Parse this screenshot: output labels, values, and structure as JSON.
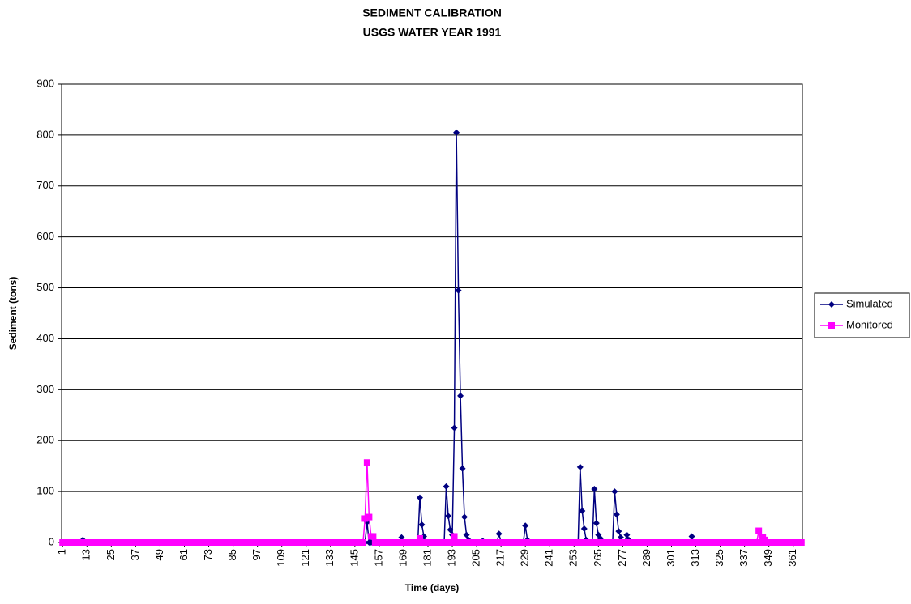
{
  "chart_data": {
    "type": "line",
    "title": "SEDIMENT CALIBRATION",
    "subtitle": "USGS WATER YEAR 1991",
    "xlabel": "Time (days)",
    "ylabel": "Sediment (tons)",
    "xlim": [
      0.5,
      365.5
    ],
    "ylim": [
      0,
      900
    ],
    "xticks": [
      1,
      13,
      25,
      37,
      49,
      61,
      73,
      85,
      97,
      109,
      121,
      133,
      145,
      157,
      169,
      181,
      193,
      205,
      217,
      229,
      241,
      253,
      265,
      277,
      289,
      301,
      313,
      325,
      337,
      349,
      361
    ],
    "yticks": [
      0,
      100,
      200,
      300,
      400,
      500,
      600,
      700,
      800,
      900
    ],
    "grid": true,
    "legend": "right",
    "x": [
      1,
      2,
      3,
      4,
      5,
      6,
      7,
      8,
      9,
      10,
      11,
      12,
      13,
      14,
      15,
      16,
      17,
      18,
      19,
      20,
      21,
      22,
      23,
      24,
      25,
      26,
      27,
      28,
      29,
      30,
      31,
      32,
      33,
      34,
      35,
      36,
      37,
      38,
      39,
      40,
      41,
      42,
      43,
      44,
      45,
      46,
      47,
      48,
      49,
      50,
      51,
      52,
      53,
      54,
      55,
      56,
      57,
      58,
      59,
      60,
      61,
      62,
      63,
      64,
      65,
      66,
      67,
      68,
      69,
      70,
      71,
      72,
      73,
      74,
      75,
      76,
      77,
      78,
      79,
      80,
      81,
      82,
      83,
      84,
      85,
      86,
      87,
      88,
      89,
      90,
      91,
      92,
      93,
      94,
      95,
      96,
      97,
      98,
      99,
      100,
      101,
      102,
      103,
      104,
      105,
      106,
      107,
      108,
      109,
      110,
      111,
      112,
      113,
      114,
      115,
      116,
      117,
      118,
      119,
      120,
      121,
      122,
      123,
      124,
      125,
      126,
      127,
      128,
      129,
      130,
      131,
      132,
      133,
      134,
      135,
      136,
      137,
      138,
      139,
      140,
      141,
      142,
      143,
      144,
      145,
      146,
      147,
      148,
      149,
      150,
      151,
      152,
      153,
      154,
      155,
      156,
      157,
      158,
      159,
      160,
      161,
      162,
      163,
      164,
      165,
      166,
      167,
      168,
      169,
      170,
      171,
      172,
      173,
      174,
      175,
      176,
      177,
      178,
      179,
      180,
      181,
      182,
      183,
      184,
      185,
      186,
      187,
      188,
      189,
      190,
      191,
      192,
      193,
      194,
      195,
      196,
      197,
      198,
      199,
      200,
      201,
      202,
      203,
      204,
      205,
      206,
      207,
      208,
      209,
      210,
      211,
      212,
      213,
      214,
      215,
      216,
      217,
      218,
      219,
      220,
      221,
      222,
      223,
      224,
      225,
      226,
      227,
      228,
      229,
      230,
      231,
      232,
      233,
      234,
      235,
      236,
      237,
      238,
      239,
      240,
      241,
      242,
      243,
      244,
      245,
      246,
      247,
      248,
      249,
      250,
      251,
      252,
      253,
      254,
      255,
      256,
      257,
      258,
      259,
      260,
      261,
      262,
      263,
      264,
      265,
      266,
      267,
      268,
      269,
      270,
      271,
      272,
      273,
      274,
      275,
      276,
      277,
      278,
      279,
      280,
      281,
      282,
      283,
      284,
      285,
      286,
      287,
      288,
      289,
      290,
      291,
      292,
      293,
      294,
      295,
      296,
      297,
      298,
      299,
      300,
      301,
      302,
      303,
      304,
      305,
      306,
      307,
      308,
      309,
      310,
      311,
      312,
      313,
      314,
      315,
      316,
      317,
      318,
      319,
      320,
      321,
      322,
      323,
      324,
      325,
      326,
      327,
      328,
      329,
      330,
      331,
      332,
      333,
      334,
      335,
      336,
      337,
      338,
      339,
      340,
      341,
      342,
      343,
      344,
      345,
      346,
      347,
      348,
      349,
      350,
      351,
      352,
      353,
      354,
      355,
      356,
      357,
      358,
      359,
      360,
      361,
      362,
      363,
      364,
      365
    ],
    "series": [
      {
        "name": "Simulated",
        "color": "#000080",
        "marker": "diamond",
        "values": [
          0,
          0,
          0,
          0,
          0,
          0,
          0,
          0,
          0,
          0,
          5,
          0,
          0,
          0,
          0,
          0,
          0,
          0,
          0,
          0,
          0,
          0,
          0,
          0,
          0,
          0,
          0,
          0,
          0,
          0,
          0,
          0,
          0,
          0,
          0,
          0,
          0,
          0,
          0,
          0,
          0,
          0,
          0,
          0,
          0,
          0,
          0,
          0,
          0,
          0,
          0,
          0,
          0,
          0,
          0,
          0,
          0,
          0,
          0,
          0,
          0,
          0,
          0,
          0,
          0,
          0,
          0,
          0,
          0,
          0,
          0,
          0,
          0,
          0,
          0,
          0,
          0,
          0,
          0,
          0,
          0,
          0,
          0,
          0,
          0,
          0,
          0,
          0,
          0,
          0,
          0,
          0,
          0,
          0,
          0,
          0,
          0,
          0,
          0,
          0,
          0,
          0,
          0,
          0,
          0,
          0,
          0,
          0,
          0,
          0,
          0,
          0,
          0,
          0,
          0,
          0,
          0,
          0,
          0,
          0,
          0,
          0,
          0,
          0,
          0,
          0,
          0,
          0,
          0,
          0,
          0,
          0,
          0,
          0,
          0,
          0,
          0,
          0,
          0,
          0,
          0,
          0,
          0,
          0,
          0,
          0,
          0,
          0,
          0,
          0,
          40,
          0,
          0,
          0,
          0,
          0,
          0,
          0,
          0,
          0,
          0,
          0,
          0,
          0,
          0,
          0,
          0,
          10,
          0,
          0,
          0,
          0,
          0,
          0,
          0,
          0,
          88,
          35,
          12,
          0,
          0,
          0,
          0,
          0,
          0,
          0,
          0,
          0,
          0,
          110,
          52,
          25,
          15,
          225,
          805,
          495,
          288,
          145,
          50,
          15,
          5,
          0,
          0,
          0,
          0,
          0,
          0,
          3,
          0,
          0,
          0,
          0,
          0,
          0,
          0,
          17,
          0,
          0,
          0,
          0,
          0,
          0,
          0,
          0,
          0,
          0,
          0,
          0,
          33,
          5,
          0,
          0,
          0,
          0,
          0,
          0,
          0,
          0,
          0,
          0,
          0,
          0,
          0,
          0,
          0,
          0,
          0,
          0,
          0,
          0,
          0,
          0,
          0,
          0,
          0,
          148,
          62,
          27,
          5,
          0,
          0,
          0,
          105,
          38,
          15,
          8,
          0,
          0,
          0,
          0,
          0,
          0,
          100,
          55,
          22,
          10,
          0,
          0,
          15,
          5,
          0,
          0,
          0,
          0,
          0,
          0,
          0,
          0,
          0,
          0,
          0,
          0,
          0,
          0,
          0,
          0,
          0,
          0,
          0,
          0,
          0,
          0,
          0,
          0,
          0,
          0,
          0,
          0,
          0,
          0,
          12,
          0,
          0,
          0,
          0,
          0,
          0,
          0,
          0,
          0,
          0,
          0,
          0,
          0,
          0,
          0,
          0,
          0,
          0,
          0,
          0,
          0,
          0,
          0,
          0,
          0,
          0,
          0,
          0,
          0,
          0,
          0,
          0,
          0,
          0,
          0,
          0,
          0,
          0,
          0,
          0,
          0,
          0,
          0,
          0,
          0,
          0,
          0,
          0,
          0,
          0,
          0,
          0,
          0,
          0
        ]
      },
      {
        "name": "Monitored",
        "color": "#ff00ff",
        "marker": "square",
        "values": [
          0,
          0,
          0,
          0,
          0,
          0,
          0,
          0,
          0,
          0,
          0,
          0,
          0,
          0,
          0,
          0,
          0,
          0,
          0,
          0,
          0,
          0,
          0,
          0,
          0,
          0,
          0,
          0,
          0,
          0,
          0,
          0,
          0,
          0,
          0,
          0,
          0,
          0,
          0,
          0,
          0,
          0,
          0,
          0,
          0,
          0,
          0,
          0,
          0,
          0,
          0,
          0,
          0,
          0,
          0,
          0,
          0,
          0,
          0,
          0,
          0,
          0,
          0,
          0,
          0,
          0,
          0,
          0,
          0,
          0,
          0,
          0,
          0,
          0,
          0,
          0,
          0,
          0,
          0,
          0,
          0,
          0,
          0,
          0,
          0,
          0,
          0,
          0,
          0,
          0,
          0,
          0,
          0,
          0,
          0,
          0,
          0,
          0,
          0,
          0,
          0,
          0,
          0,
          0,
          0,
          0,
          0,
          0,
          0,
          0,
          0,
          0,
          0,
          0,
          0,
          0,
          0,
          0,
          0,
          0,
          0,
          0,
          0,
          0,
          0,
          0,
          0,
          0,
          0,
          0,
          0,
          0,
          0,
          0,
          0,
          0,
          0,
          0,
          0,
          0,
          0,
          0,
          0,
          0,
          0,
          0,
          0,
          0,
          0,
          47,
          157,
          50,
          12,
          12,
          0,
          0,
          0,
          0,
          0,
          0,
          0,
          0,
          0,
          0,
          0,
          0,
          0,
          0,
          0,
          0,
          0,
          0,
          0,
          0,
          0,
          0,
          8,
          0,
          0,
          0,
          0,
          0,
          0,
          0,
          0,
          0,
          0,
          0,
          0,
          0,
          0,
          0,
          0,
          12,
          0,
          0,
          0,
          0,
          0,
          0,
          0,
          0,
          0,
          0,
          0,
          0,
          0,
          0,
          0,
          0,
          0,
          0,
          0,
          0,
          0,
          0,
          0,
          0,
          0,
          0,
          0,
          0,
          0,
          0,
          0,
          0,
          0,
          0,
          0,
          0,
          0,
          0,
          0,
          0,
          0,
          0,
          0,
          0,
          0,
          0,
          0,
          0,
          0,
          0,
          0,
          0,
          0,
          0,
          0,
          0,
          0,
          0,
          0,
          0,
          0,
          0,
          0,
          0,
          0,
          0,
          0,
          0,
          0,
          0,
          0,
          0,
          0,
          0,
          0,
          0,
          0,
          0,
          0,
          0,
          0,
          0,
          0,
          0,
          0,
          0,
          0,
          0,
          0,
          0,
          0,
          0,
          0,
          0,
          0,
          0,
          0,
          0,
          0,
          0,
          0,
          0,
          0,
          0,
          0,
          0,
          0,
          0,
          0,
          0,
          0,
          0,
          0,
          0,
          0,
          0,
          0,
          0,
          0,
          0,
          0,
          0,
          0,
          0,
          0,
          0,
          0,
          0,
          0,
          0,
          0,
          0,
          0,
          0,
          0,
          0,
          0,
          0,
          0,
          0,
          0,
          0,
          0,
          0,
          0,
          0,
          0,
          0,
          0,
          23,
          0,
          10,
          5,
          0,
          0,
          0,
          0,
          0,
          0,
          0,
          0,
          0,
          0,
          0,
          0,
          0,
          0,
          0,
          0,
          0,
          0
        ]
      }
    ]
  }
}
